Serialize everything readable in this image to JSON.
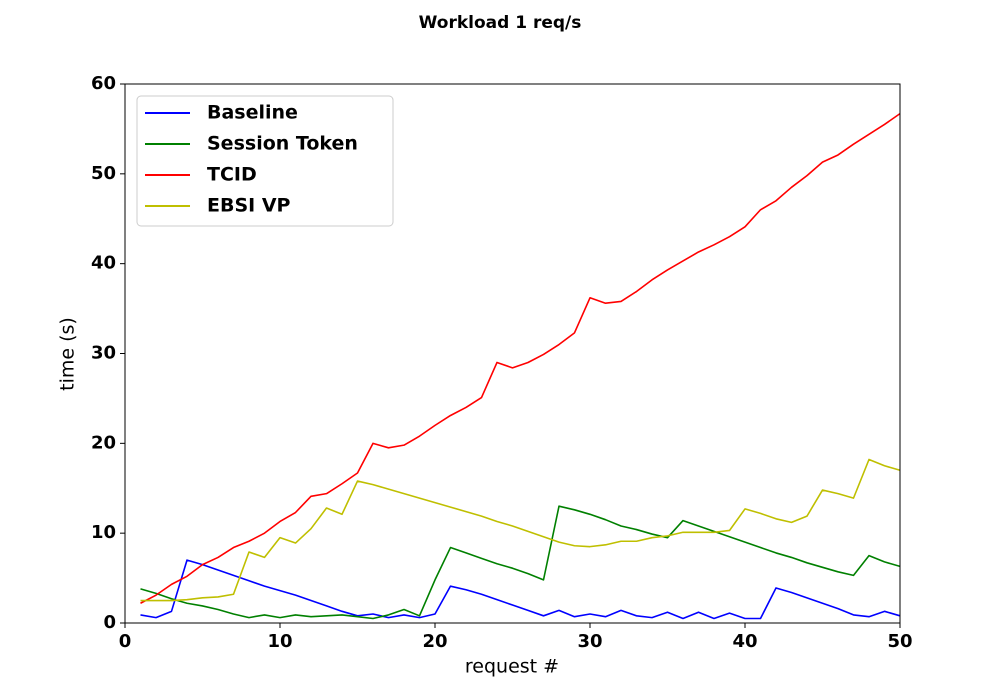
{
  "chart_data": {
    "type": "line",
    "title": "Workload 1 req/s",
    "x_label": "request #",
    "y_label": "time (s)",
    "x": [
      1,
      2,
      3,
      4,
      5,
      6,
      7,
      8,
      9,
      10,
      11,
      12,
      13,
      14,
      15,
      16,
      17,
      18,
      19,
      20,
      21,
      22,
      23,
      24,
      25,
      26,
      27,
      28,
      29,
      30,
      31,
      32,
      33,
      34,
      35,
      36,
      37,
      38,
      39,
      40,
      41,
      42,
      43,
      44,
      45,
      46,
      47,
      48,
      49,
      50
    ],
    "series": [
      {
        "name": "Baseline",
        "color": "#0000ff",
        "values": [
          0.9,
          0.6,
          1.3,
          7.0,
          6.5,
          5.9,
          5.3,
          4.7,
          4.1,
          3.6,
          3.1,
          2.5,
          1.9,
          1.3,
          0.8,
          1.0,
          0.6,
          0.9,
          0.6,
          1.0,
          4.1,
          3.7,
          3.2,
          2.6,
          2.0,
          1.4,
          0.8,
          1.4,
          0.7,
          1.0,
          0.7,
          1.4,
          0.8,
          0.6,
          1.2,
          0.5,
          1.2,
          0.5,
          1.1,
          0.5,
          0.5,
          3.9,
          3.4,
          2.8,
          2.2,
          1.6,
          0.9,
          0.7,
          1.3,
          0.8
        ]
      },
      {
        "name": "Session Token",
        "color": "#008000",
        "values": [
          3.8,
          3.3,
          2.7,
          2.2,
          1.9,
          1.5,
          1.0,
          0.6,
          0.9,
          0.6,
          0.9,
          0.7,
          0.8,
          0.9,
          0.7,
          0.5,
          0.9,
          1.5,
          0.8,
          4.8,
          8.4,
          7.8,
          7.2,
          6.6,
          6.1,
          5.5,
          4.8,
          13.0,
          12.6,
          12.1,
          11.5,
          10.8,
          10.4,
          9.9,
          9.5,
          11.4,
          10.8,
          10.2,
          9.6,
          9.0,
          8.4,
          7.8,
          7.3,
          6.7,
          6.2,
          5.7,
          5.3,
          7.5,
          6.8,
          6.3
        ]
      },
      {
        "name": "TCID",
        "color": "#ff0000",
        "values": [
          2.2,
          3.1,
          4.3,
          5.2,
          6.5,
          7.3,
          8.4,
          9.1,
          10.0,
          11.3,
          12.3,
          14.1,
          14.4,
          15.5,
          16.7,
          20.0,
          19.5,
          19.8,
          20.8,
          22.0,
          23.1,
          24.0,
          25.1,
          29.0,
          28.4,
          29.0,
          29.9,
          31.0,
          32.3,
          36.2,
          35.6,
          35.8,
          36.9,
          38.2,
          39.3,
          40.3,
          41.3,
          42.1,
          43.0,
          44.1,
          46.0,
          47.0,
          48.5,
          49.8,
          51.3,
          52.1,
          53.3,
          54.4,
          55.5,
          56.7
        ]
      },
      {
        "name": "EBSI VP",
        "color": "#bfbf00",
        "values": [
          2.5,
          2.5,
          2.5,
          2.6,
          2.8,
          2.9,
          3.2,
          7.9,
          7.3,
          9.5,
          8.9,
          10.5,
          12.8,
          12.1,
          15.8,
          15.4,
          14.9,
          14.4,
          13.9,
          13.4,
          12.9,
          12.4,
          11.9,
          11.3,
          10.8,
          10.2,
          9.6,
          9.0,
          8.6,
          8.5,
          8.7,
          9.1,
          9.1,
          9.5,
          9.7,
          10.1,
          10.1,
          10.1,
          10.3,
          12.7,
          12.2,
          11.6,
          11.2,
          11.9,
          14.8,
          14.4,
          13.9,
          18.2,
          17.5,
          17.0
        ]
      }
    ],
    "xlim": [
      0,
      50
    ],
    "xticks": [
      0,
      10,
      20,
      30,
      40,
      50
    ],
    "ylim": [
      0,
      60
    ],
    "yticks": [
      0,
      10,
      20,
      30,
      40,
      50,
      60
    ],
    "grid": false,
    "legend_position": "upper-left"
  }
}
